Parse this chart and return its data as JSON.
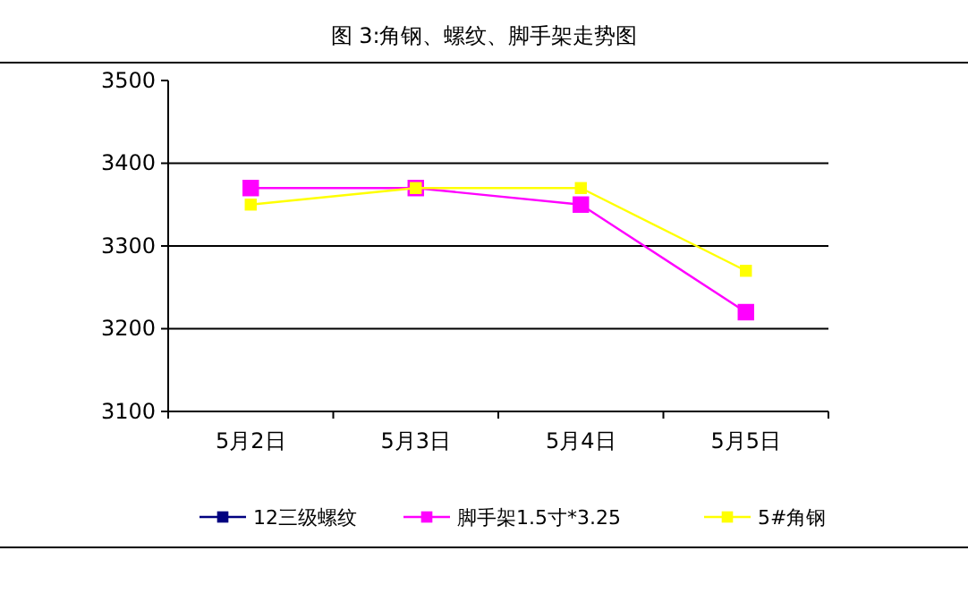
{
  "chart_data": {
    "type": "line",
    "title": "图 3:角钢、螺纹、脚手架走势图",
    "categories": [
      "5月2日",
      "5月3日",
      "5月4日",
      "5月5日"
    ],
    "series": [
      {
        "name": "12三级螺纹",
        "color": "#000080",
        "values": [
          null,
          null,
          null,
          null
        ]
      },
      {
        "name": "脚手架1.5寸*3.25",
        "color": "#ff00ff",
        "values": [
          3370,
          3370,
          3350,
          3220
        ]
      },
      {
        "name": "5#角钢",
        "color": "#ffff00",
        "values": [
          3350,
          3370,
          3370,
          3270
        ]
      }
    ],
    "ylim": [
      3100,
      3500
    ],
    "yticks": [
      3100,
      3200,
      3300,
      3400,
      3500
    ],
    "grid": "y",
    "legend": "bottom",
    "marker": "square",
    "line_style": "solid"
  }
}
